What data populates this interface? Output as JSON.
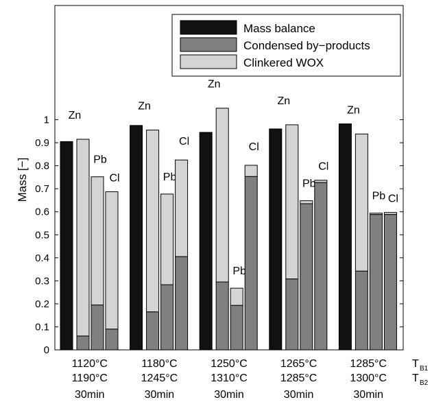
{
  "colors": {
    "mass_balance": "#111111",
    "condensed": "#808080",
    "clinkered": "#d4d4d4",
    "stroke": "#000000"
  },
  "chart_data": {
    "type": "bar",
    "ylabel": "Mass [−]",
    "ylim": [
      0,
      1.3
    ],
    "yticks": [
      0,
      0.1,
      0.2,
      0.3,
      0.4,
      0.5,
      0.6,
      0.7,
      0.8,
      0.9,
      1
    ],
    "ytick_labels": [
      "0",
      "0.1",
      "0.2",
      "0.3",
      "0.4",
      "0.5",
      "0.6",
      "0.7",
      "0.8",
      "0.9",
      "1"
    ],
    "grid": false,
    "legend_placement": "top-right",
    "legend": [
      {
        "key": "mass_balance",
        "label": "Mass balance"
      },
      {
        "key": "condensed",
        "label": "Condensed by−products"
      },
      {
        "key": "clinkered",
        "label": "Clinkered WOX"
      }
    ],
    "axis_row_labels": [
      {
        "main": "T",
        "sub": "B1"
      },
      {
        "main": "T",
        "sub": "B2"
      }
    ],
    "groups": [
      {
        "tb1": "1120°C",
        "tb2": "1190°C",
        "time": "30min",
        "mass_balance": 0.905,
        "elements": [
          {
            "label": "Zn",
            "condensed": 0.06,
            "total": 0.915
          },
          {
            "label": "Pb",
            "condensed": 0.195,
            "total": 0.752
          },
          {
            "label": "Cl",
            "condensed": 0.09,
            "total": 0.687
          }
        ]
      },
      {
        "tb1": "1180°C",
        "tb2": "1245°C",
        "time": "30min",
        "mass_balance": 0.975,
        "elements": [
          {
            "label": "Zn",
            "condensed": 0.165,
            "total": 0.955
          },
          {
            "label": "Pb",
            "condensed": 0.283,
            "total": 0.677
          },
          {
            "label": "Cl",
            "condensed": 0.405,
            "total": 0.825
          }
        ]
      },
      {
        "tb1": "1250°C",
        "tb2": "1310°C",
        "time": "30min",
        "mass_balance": 0.945,
        "elements": [
          {
            "label": "Zn",
            "condensed": 0.295,
            "total": 1.05
          },
          {
            "label": "Pb",
            "condensed": 0.193,
            "total": 0.268
          },
          {
            "label": "Cl",
            "condensed": 0.753,
            "total": 0.802
          }
        ]
      },
      {
        "tb1": "1265°C",
        "tb2": "1285°C",
        "time": "30min",
        "mass_balance": 0.96,
        "elements": [
          {
            "label": "Zn",
            "condensed": 0.308,
            "total": 0.978
          },
          {
            "label": "Pb",
            "condensed": 0.635,
            "total": 0.648
          },
          {
            "label": "Cl",
            "condensed": 0.727,
            "total": 0.737
          }
        ]
      },
      {
        "tb1": "1285°C",
        "tb2": "1300°C",
        "time": "30min",
        "mass_balance": 0.982,
        "elements": [
          {
            "label": "Zn",
            "condensed": 0.342,
            "total": 0.938
          },
          {
            "label": "Pb",
            "condensed": 0.588,
            "total": 0.594
          },
          {
            "label": "Cl",
            "condensed": 0.588,
            "total": 0.597
          }
        ]
      }
    ]
  }
}
